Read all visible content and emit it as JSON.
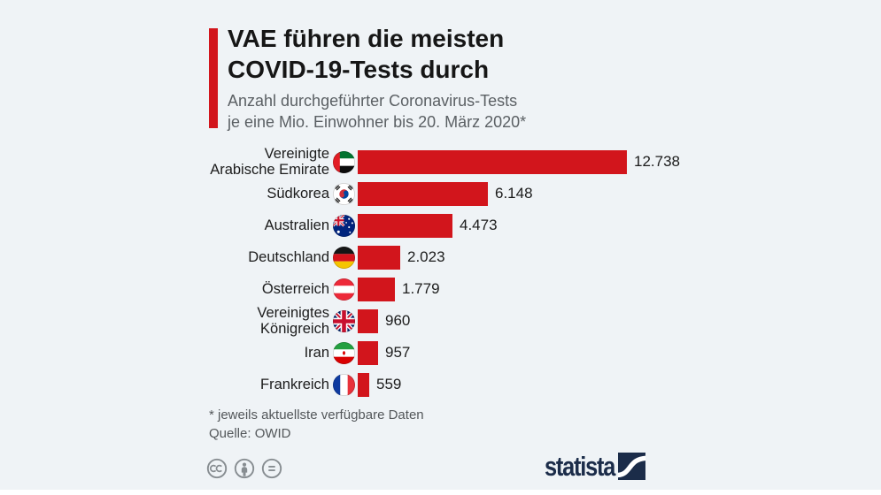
{
  "colors": {
    "background": "#eff3f6",
    "accent_red": "#d2151c",
    "brand_navy": "#1b2c49",
    "icon_gray": "#878d91"
  },
  "header": {
    "title_lines": [
      "VAE führen die meisten",
      "COVID-19-Tests durch"
    ],
    "subtitle_lines": [
      "Anzahl durchgeführter Coronavirus-Tests",
      "je eine Mio. Einwohner bis 20. März 2020*"
    ]
  },
  "chart_data": {
    "type": "bar",
    "orientation": "horizontal",
    "title": "VAE führen die meisten COVID-19-Tests durch",
    "subtitle": "Anzahl durchgeführter Coronavirus-Tests je eine Mio. Einwohner bis 20. März 2020*",
    "categories": [
      "Vereinigte Arabische Emirate",
      "Südkorea",
      "Australien",
      "Deutschland",
      "Österreich",
      "Vereinigtes Königreich",
      "Iran",
      "Frankreich"
    ],
    "values": [
      12738,
      6148,
      4473,
      2023,
      1779,
      960,
      957,
      559
    ],
    "value_labels": [
      "12.738",
      "6.148",
      "4.473",
      "2.023",
      "1.779",
      "960",
      "957",
      "559"
    ],
    "xlim": [
      0,
      12738
    ],
    "bar_color": "#d2151c",
    "grid": false,
    "legend": false
  },
  "rows": [
    {
      "label_lines": [
        "Vereinigte",
        "Arabische Emirate"
      ],
      "flag": "uae-flag",
      "value": 12738,
      "value_label": "12.738"
    },
    {
      "label_lines": [
        "Südkorea"
      ],
      "flag": "south-korea-flag",
      "value": 6148,
      "value_label": "6.148"
    },
    {
      "label_lines": [
        "Australien"
      ],
      "flag": "australia-flag",
      "value": 4473,
      "value_label": "4.473"
    },
    {
      "label_lines": [
        "Deutschland"
      ],
      "flag": "germany-flag",
      "value": 2023,
      "value_label": "2.023"
    },
    {
      "label_lines": [
        "Österreich"
      ],
      "flag": "austria-flag",
      "value": 1779,
      "value_label": "1.779"
    },
    {
      "label_lines": [
        "Vereinigtes",
        "Königreich"
      ],
      "flag": "uk-flag",
      "value": 960,
      "value_label": "960"
    },
    {
      "label_lines": [
        "Iran"
      ],
      "flag": "iran-flag",
      "value": 957,
      "value_label": "957"
    },
    {
      "label_lines": [
        "Frankreich"
      ],
      "flag": "france-flag",
      "value": 559,
      "value_label": "559"
    }
  ],
  "notes": {
    "footnote": "* jeweils aktuellste verfügbare Daten",
    "source": "Quelle: OWID"
  },
  "footer": {
    "license_icons": [
      "cc-icon",
      "attribution-icon",
      "equals-icon"
    ],
    "brand_name": "statista"
  }
}
